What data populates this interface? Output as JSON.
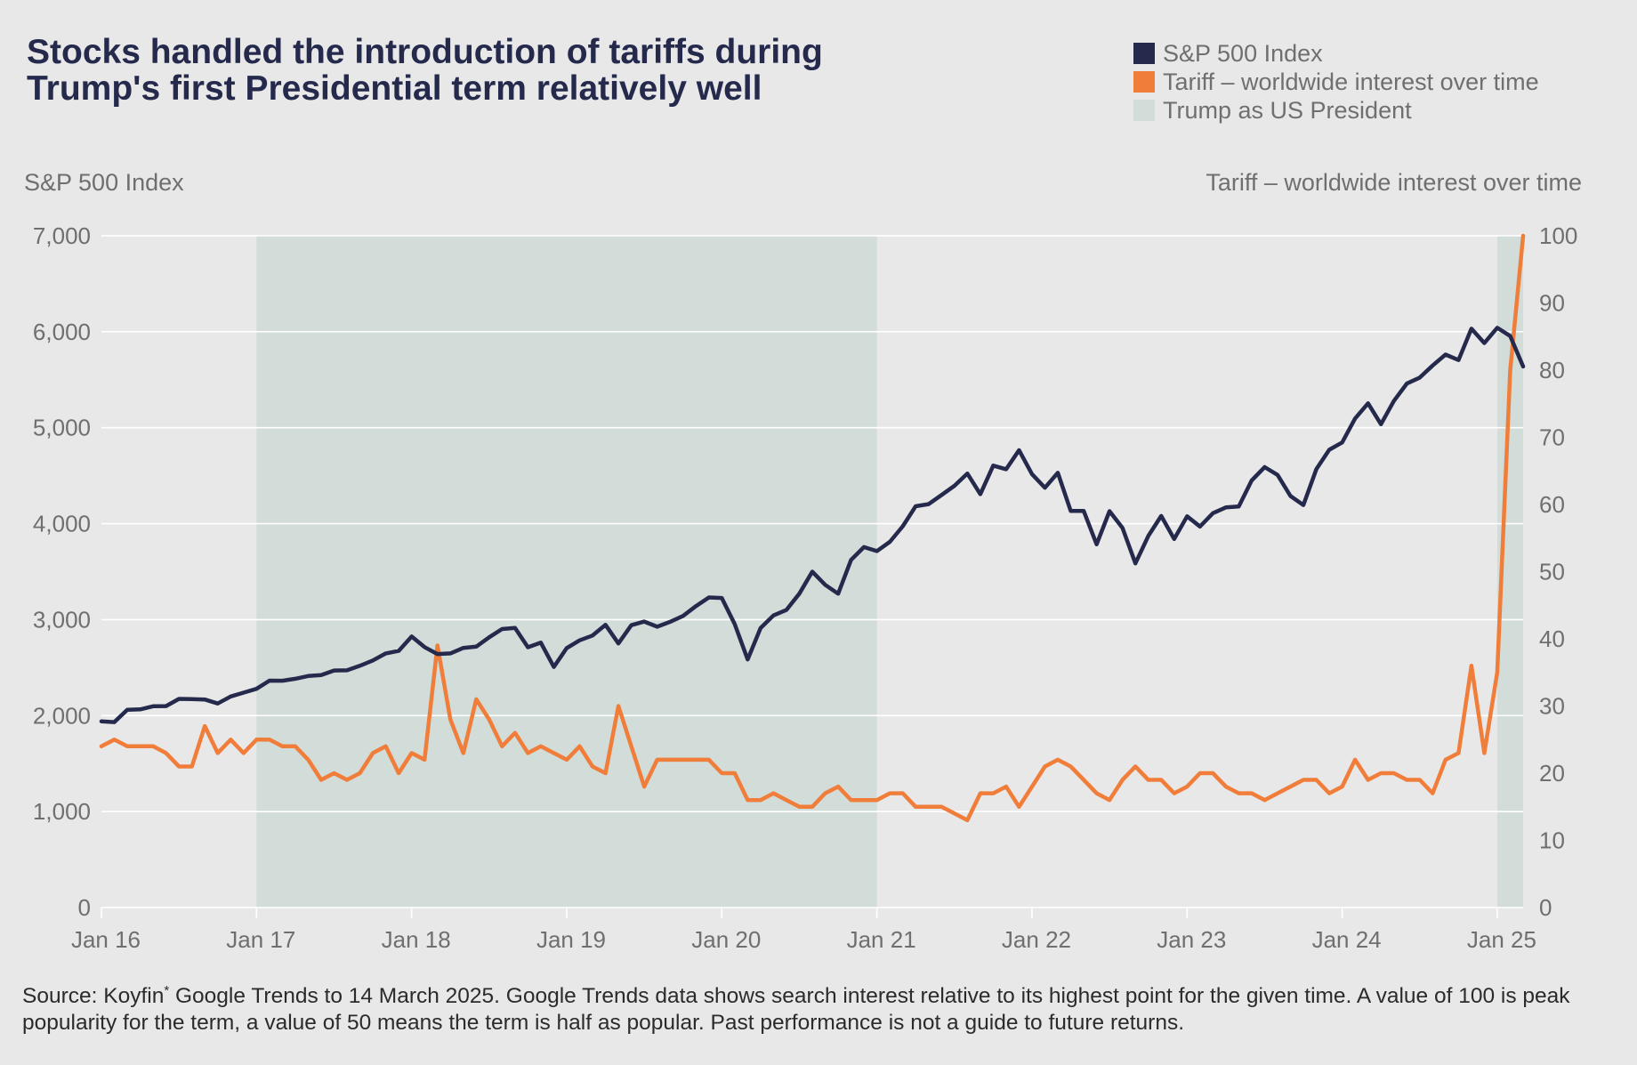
{
  "title": "Stocks handled the introduction of tariffs during Trump's first Presidential term relatively well",
  "colors": {
    "background": "#e8e8e8",
    "sp500": "#252a4d",
    "tariff": "#f07e3a",
    "president": "#d2dcd8",
    "grid": "#ffffff",
    "text": "#6f6f6f"
  },
  "legend": [
    {
      "label": "S&P 500 Index",
      "color": "#252a4d"
    },
    {
      "label": "Tariff – worldwide interest over time",
      "color": "#f07e3a"
    },
    {
      "label": "Trump as US President",
      "color": "#d2dcd8"
    }
  ],
  "source": {
    "part1": "Source: Koyfin",
    "marker": "*",
    "part2": " Google Trends to 14 March 2025. Google Trends data shows search interest relative to its highest point for the given time. A value of 100 is peak popularity for the term, a value of 50 means the term is half as popular. Past performance is not a guide to  future returns."
  },
  "chart_data": {
    "type": "line",
    "title": "Stocks handled the introduction of tariffs during Trump's first Presidential term relatively well",
    "ylabel": "S&P 500 Index",
    "ylabel_right": "Tariff – worldwide interest over time",
    "ylim": [
      0,
      7000
    ],
    "ylim_right": [
      0,
      100
    ],
    "yticks": [
      "0",
      "1,000",
      "2,000",
      "3,000",
      "4,000",
      "5,000",
      "6,000",
      "7,000"
    ],
    "yticks_right": [
      "0",
      "10",
      "20",
      "30",
      "40",
      "50",
      "60",
      "70",
      "80",
      "90",
      "100"
    ],
    "xlim": [
      "2016-01",
      "2025-03"
    ],
    "xticks": [
      {
        "label": "Jan 16",
        "x": "2016-01"
      },
      {
        "label": "Jan 17",
        "x": "2017-01"
      },
      {
        "label": "Jan 18",
        "x": "2018-01"
      },
      {
        "label": "Jan 19",
        "x": "2019-01"
      },
      {
        "label": "Jan 20",
        "x": "2020-01"
      },
      {
        "label": "Jan 21",
        "x": "2021-01"
      },
      {
        "label": "Jan 22",
        "x": "2022-01"
      },
      {
        "label": "Jan 23",
        "x": "2023-01"
      },
      {
        "label": "Jan 24",
        "x": "2024-01"
      },
      {
        "label": "Jan 25",
        "x": "2025-01"
      }
    ],
    "grid": true,
    "legend_position": "top-right",
    "shaded_periods": [
      {
        "name": "Trump as US President",
        "start": "2017-01",
        "end": "2020-12"
      },
      {
        "name": "Trump as US President",
        "start": "2025-01",
        "end": "2025-03"
      }
    ],
    "x": [
      "2016-01",
      "2016-02",
      "2016-03",
      "2016-04",
      "2016-05",
      "2016-06",
      "2016-07",
      "2016-08",
      "2016-09",
      "2016-10",
      "2016-11",
      "2016-12",
      "2017-01",
      "2017-02",
      "2017-03",
      "2017-04",
      "2017-05",
      "2017-06",
      "2017-07",
      "2017-08",
      "2017-09",
      "2017-10",
      "2017-11",
      "2017-12",
      "2018-01",
      "2018-02",
      "2018-03",
      "2018-04",
      "2018-05",
      "2018-06",
      "2018-07",
      "2018-08",
      "2018-09",
      "2018-10",
      "2018-11",
      "2018-12",
      "2019-01",
      "2019-02",
      "2019-03",
      "2019-04",
      "2019-05",
      "2019-06",
      "2019-07",
      "2019-08",
      "2019-09",
      "2019-10",
      "2019-11",
      "2019-12",
      "2020-01",
      "2020-02",
      "2020-03",
      "2020-04",
      "2020-05",
      "2020-06",
      "2020-07",
      "2020-08",
      "2020-09",
      "2020-10",
      "2020-11",
      "2020-12",
      "2021-01",
      "2021-02",
      "2021-03",
      "2021-04",
      "2021-05",
      "2021-06",
      "2021-07",
      "2021-08",
      "2021-09",
      "2021-10",
      "2021-11",
      "2021-12",
      "2022-01",
      "2022-02",
      "2022-03",
      "2022-04",
      "2022-05",
      "2022-06",
      "2022-07",
      "2022-08",
      "2022-09",
      "2022-10",
      "2022-11",
      "2022-12",
      "2023-01",
      "2023-02",
      "2023-03",
      "2023-04",
      "2023-05",
      "2023-06",
      "2023-07",
      "2023-08",
      "2023-09",
      "2023-10",
      "2023-11",
      "2023-12",
      "2024-01",
      "2024-02",
      "2024-03",
      "2024-04",
      "2024-05",
      "2024-06",
      "2024-07",
      "2024-08",
      "2024-09",
      "2024-10",
      "2024-11",
      "2024-12",
      "2025-01",
      "2025-02",
      "2025-03"
    ],
    "series": [
      {
        "name": "S&P 500 Index",
        "axis": "left",
        "color": "#252a4d",
        "values": [
          1940,
          1932,
          2060,
          2065,
          2097,
          2099,
          2174,
          2171,
          2168,
          2126,
          2199,
          2239,
          2279,
          2364,
          2363,
          2384,
          2412,
          2423,
          2470,
          2472,
          2519,
          2575,
          2648,
          2674,
          2824,
          2714,
          2641,
          2648,
          2705,
          2718,
          2816,
          2902,
          2914,
          2712,
          2760,
          2507,
          2704,
          2784,
          2834,
          2946,
          2752,
          2942,
          2980,
          2926,
          2977,
          3038,
          3141,
          3231,
          3226,
          2954,
          2585,
          2912,
          3044,
          3100,
          3271,
          3500,
          3363,
          3270,
          3622,
          3756,
          3714,
          3811,
          3973,
          4181,
          4204,
          4298,
          4395,
          4523,
          4308,
          4605,
          4567,
          4766,
          4516,
          4374,
          4530,
          4132,
          4132,
          3785,
          4130,
          3955,
          3586,
          3872,
          4080,
          3840,
          4077,
          3970,
          4109,
          4169,
          4180,
          4450,
          4589,
          4508,
          4288,
          4194,
          4568,
          4770,
          4846,
          5096,
          5254,
          5036,
          5278,
          5460,
          5522,
          5648,
          5762,
          5705,
          6032,
          5882,
          6041,
          5955,
          5638
        ]
      },
      {
        "name": "Tariff – worldwide interest over time",
        "axis": "right",
        "color": "#f07e3a",
        "values": [
          24,
          25,
          24,
          24,
          24,
          23,
          21,
          21,
          27,
          23,
          25,
          23,
          25,
          25,
          24,
          24,
          22,
          19,
          20,
          19,
          20,
          23,
          24,
          20,
          23,
          22,
          39,
          28,
          23,
          31,
          28,
          24,
          26,
          23,
          24,
          23,
          22,
          24,
          21,
          20,
          30,
          24,
          18,
          22,
          22,
          22,
          22,
          22,
          20,
          20,
          16,
          16,
          17,
          16,
          15,
          15,
          17,
          18,
          16,
          16,
          16,
          17,
          17,
          15,
          15,
          15,
          14,
          13,
          17,
          17,
          18,
          15,
          18,
          21,
          22,
          21,
          19,
          17,
          16,
          19,
          21,
          19,
          19,
          17,
          18,
          20,
          20,
          18,
          17,
          17,
          16,
          17,
          18,
          19,
          19,
          17,
          18,
          22,
          19,
          20,
          20,
          19,
          19,
          17,
          22,
          23,
          36,
          23,
          35,
          80,
          100
        ]
      }
    ]
  }
}
